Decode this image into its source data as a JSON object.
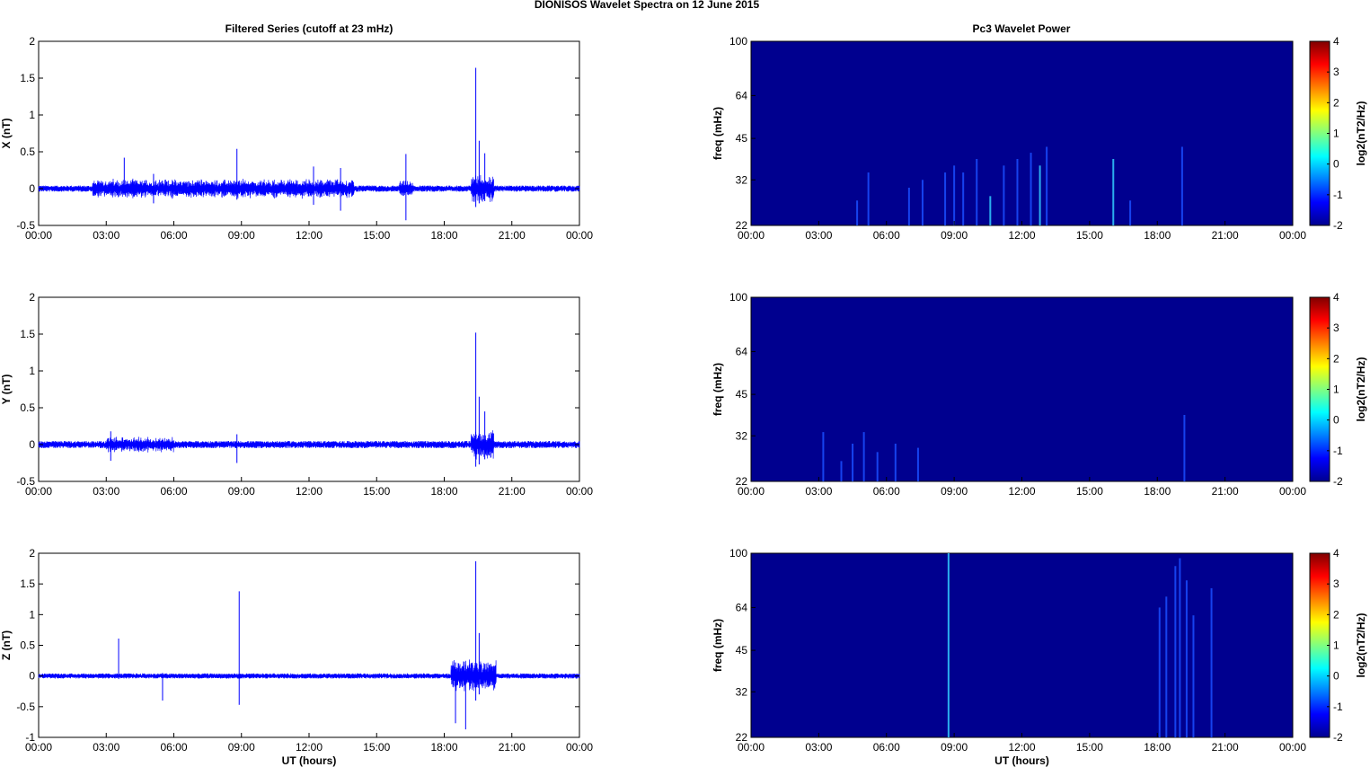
{
  "figure": {
    "suptitle": "DIONISOS Wavelet Spectra on 12 June      2015",
    "left_title": "Filtered Series (cutoff at 23 mHz)",
    "right_title": "Pc3 Wavelet Power",
    "xlabel": "UT (hours)",
    "x_ticks": [
      "00:00",
      "03:00",
      "06:00",
      "09:00",
      "12:00",
      "15:00",
      "18:00",
      "21:00",
      "00:00"
    ],
    "freq_label": "freq (mHz)",
    "colorbar_label": "log2(nT2/Hz)",
    "colorbar_ticks": [
      "4",
      "3",
      "2",
      "1",
      "0",
      "-1",
      "-2"
    ]
  },
  "colors": {
    "trace": "#0000ff",
    "map_background": "#00008f",
    "streak": "#1a4dff",
    "streak_hot": "#33ccff"
  },
  "chart_data": [
    {
      "type": "line",
      "component": "X",
      "ylabel": "X (nT)",
      "xlim": [
        0,
        24
      ],
      "ylim": [
        -0.5,
        2
      ],
      "y_ticks": [
        "2",
        "1.5",
        "1",
        "0.5",
        "0",
        "-0.5"
      ],
      "noise_amplitude": 0.03,
      "spikes": [
        {
          "t": 3.8,
          "hi": 0.42,
          "lo": -0.06
        },
        {
          "t": 5.1,
          "hi": 0.2,
          "lo": -0.2
        },
        {
          "t": 8.8,
          "hi": 0.54,
          "lo": -0.15
        },
        {
          "t": 12.2,
          "hi": 0.3,
          "lo": -0.22
        },
        {
          "t": 13.4,
          "hi": 0.28,
          "lo": -0.3
        },
        {
          "t": 16.3,
          "hi": 0.47,
          "lo": -0.43
        },
        {
          "t": 19.4,
          "hi": 1.64,
          "lo": -0.25
        },
        {
          "t": 19.55,
          "hi": 0.65,
          "lo": -0.2
        },
        {
          "t": 19.8,
          "hi": 0.48,
          "lo": -0.17
        }
      ],
      "active_bands": [
        {
          "start": 2.4,
          "end": 14.0,
          "amp": 0.1
        },
        {
          "start": 16.0,
          "end": 16.6,
          "amp": 0.08
        },
        {
          "start": 19.2,
          "end": 20.2,
          "amp": 0.15
        }
      ]
    },
    {
      "type": "line",
      "component": "Y",
      "ylabel": "Y (nT)",
      "xlim": [
        0,
        24
      ],
      "ylim": [
        -0.5,
        2
      ],
      "y_ticks": [
        "2",
        "1.5",
        "1",
        "0.5",
        "0",
        "-0.5"
      ],
      "noise_amplitude": 0.035,
      "spikes": [
        {
          "t": 3.2,
          "hi": 0.18,
          "lo": -0.22
        },
        {
          "t": 8.8,
          "hi": 0.14,
          "lo": -0.25
        },
        {
          "t": 19.4,
          "hi": 1.52,
          "lo": -0.3
        },
        {
          "t": 19.55,
          "hi": 0.65,
          "lo": -0.27
        },
        {
          "t": 19.8,
          "hi": 0.45,
          "lo": -0.2
        }
      ],
      "active_bands": [
        {
          "start": 3.0,
          "end": 6.0,
          "amp": 0.08
        },
        {
          "start": 19.2,
          "end": 20.2,
          "amp": 0.15
        }
      ]
    },
    {
      "type": "line",
      "component": "Z",
      "ylabel": "Z (nT)",
      "xlim": [
        0,
        24
      ],
      "ylim": [
        -1,
        2
      ],
      "y_ticks": [
        "2",
        "1.5",
        "1",
        "0.5",
        "0",
        "-0.5",
        "-1"
      ],
      "noise_amplitude": 0.03,
      "spikes": [
        {
          "t": 3.55,
          "hi": 0.61,
          "lo": -0.05
        },
        {
          "t": 5.5,
          "hi": 0.05,
          "lo": -0.4
        },
        {
          "t": 8.9,
          "hi": 1.38,
          "lo": -0.47
        },
        {
          "t": 18.5,
          "hi": 0.22,
          "lo": -0.77
        },
        {
          "t": 18.95,
          "hi": 0.18,
          "lo": -0.87
        },
        {
          "t": 19.4,
          "hi": 1.87,
          "lo": -0.4
        },
        {
          "t": 19.55,
          "hi": 0.7,
          "lo": -0.3
        }
      ],
      "active_bands": [
        {
          "start": 18.3,
          "end": 20.3,
          "amp": 0.2
        }
      ]
    },
    {
      "type": "heatmap",
      "component": "X",
      "xlim": [
        0,
        24
      ],
      "ylim": [
        22,
        100
      ],
      "y_ticks": [
        "100",
        "64",
        "45",
        "32",
        "22"
      ],
      "clim": [
        -2,
        4
      ],
      "streaks": [
        {
          "t": 4.7,
          "top": 27,
          "hot": false
        },
        {
          "t": 5.2,
          "top": 34,
          "hot": false
        },
        {
          "t": 7.0,
          "top": 30,
          "hot": false
        },
        {
          "t": 7.6,
          "top": 32,
          "hot": false
        },
        {
          "t": 8.6,
          "top": 34,
          "hot": false
        },
        {
          "t": 9.0,
          "top": 36,
          "hot": false
        },
        {
          "t": 9.4,
          "top": 34,
          "hot": false
        },
        {
          "t": 10.0,
          "top": 38,
          "hot": false
        },
        {
          "t": 10.6,
          "top": 28,
          "hot": true
        },
        {
          "t": 11.2,
          "top": 36,
          "hot": false
        },
        {
          "t": 11.8,
          "top": 38,
          "hot": false
        },
        {
          "t": 12.4,
          "top": 40,
          "hot": false
        },
        {
          "t": 12.8,
          "top": 36,
          "hot": true
        },
        {
          "t": 13.1,
          "top": 42,
          "hot": false
        },
        {
          "t": 16.05,
          "top": 38,
          "hot": true
        },
        {
          "t": 16.8,
          "top": 27,
          "hot": false
        },
        {
          "t": 19.1,
          "top": 42,
          "hot": false
        }
      ]
    },
    {
      "type": "heatmap",
      "component": "Y",
      "xlim": [
        0,
        24
      ],
      "ylim": [
        22,
        100
      ],
      "y_ticks": [
        "100",
        "64",
        "45",
        "32",
        "22"
      ],
      "clim": [
        -2,
        4
      ],
      "streaks": [
        {
          "t": 3.2,
          "top": 33,
          "hot": false
        },
        {
          "t": 4.0,
          "top": 26,
          "hot": false
        },
        {
          "t": 4.5,
          "top": 30,
          "hot": false
        },
        {
          "t": 5.0,
          "top": 33,
          "hot": false
        },
        {
          "t": 5.6,
          "top": 28,
          "hot": false
        },
        {
          "t": 6.4,
          "top": 30,
          "hot": false
        },
        {
          "t": 7.4,
          "top": 29,
          "hot": false
        },
        {
          "t": 19.2,
          "top": 38,
          "hot": false
        }
      ]
    },
    {
      "type": "heatmap",
      "component": "Z",
      "xlim": [
        0,
        24
      ],
      "ylim": [
        22,
        100
      ],
      "y_ticks": [
        "100",
        "64",
        "45",
        "32",
        "22"
      ],
      "clim": [
        -2,
        4
      ],
      "streaks": [
        {
          "t": 8.75,
          "top": 100,
          "hot": true
        },
        {
          "t": 18.1,
          "top": 64,
          "hot": false
        },
        {
          "t": 18.4,
          "top": 70,
          "hot": false
        },
        {
          "t": 18.8,
          "top": 90,
          "hot": false
        },
        {
          "t": 19.0,
          "top": 96,
          "hot": false
        },
        {
          "t": 19.3,
          "top": 80,
          "hot": false
        },
        {
          "t": 19.6,
          "top": 60,
          "hot": false
        },
        {
          "t": 20.4,
          "top": 75,
          "hot": false
        }
      ]
    }
  ]
}
